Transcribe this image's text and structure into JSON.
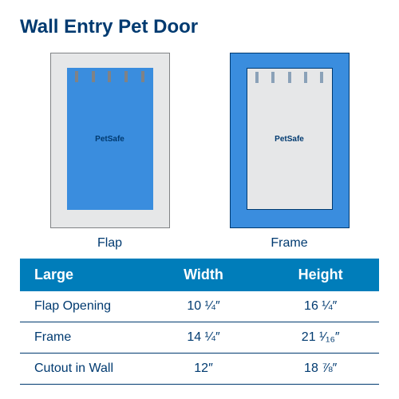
{
  "title": "Wall Entry Pet Door",
  "title_color": "#003a70",
  "brand_text": "PetSafe",
  "diagrams": {
    "flap": {
      "label": "Flap",
      "outer_bg": "#e6e7e8",
      "outer_border": "#808285",
      "inner_bg": "#3a8dde",
      "notch_count": 5
    },
    "frame": {
      "label": "Frame",
      "outer_bg": "#3a8dde",
      "outer_border": "#003a70",
      "inner_bg": "#e6e7e8",
      "notch_count": 5
    }
  },
  "table": {
    "header_bg": "#007dba",
    "header_text_color": "#ffffff",
    "row_text_color": "#003a70",
    "border_color": "#003a70",
    "columns": [
      "Large",
      "Width",
      "Height"
    ],
    "rows": [
      {
        "label": "Flap Opening",
        "width": "10 ¼″",
        "height": "16 ¼″"
      },
      {
        "label": "Frame",
        "width": "14 ¼″",
        "height": "21 ¹⁄₁₆″"
      },
      {
        "label": "Cutout in Wall",
        "width": "12″",
        "height": "18 ⅞″"
      }
    ]
  },
  "label_color": "#003a70"
}
